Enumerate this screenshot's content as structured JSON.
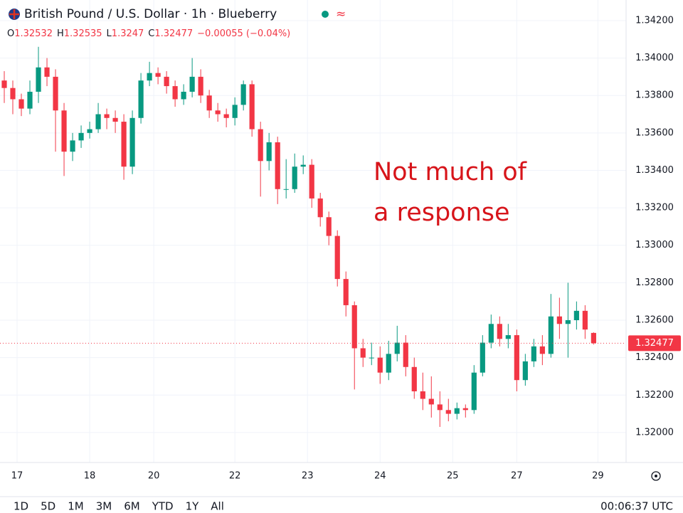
{
  "chart_data": {
    "type": "candlestick",
    "title": "British Pound / U.S. Dollar · 1h · Blueberry",
    "ohlc_header": {
      "open_label": "O",
      "open": 1.32532,
      "high_label": "H",
      "high": 1.32535,
      "low_label": "L",
      "low": 1.3247,
      "close_label": "C",
      "close": 1.32477,
      "change": "−0.00055 (−0.04%)"
    },
    "annotation": [
      "Not much of",
      "a response"
    ],
    "last_price": 1.32477,
    "up_color": "#089981",
    "down_color": "#f23645",
    "ylim": [
      1.3184,
      1.3431
    ],
    "yticks": [
      {
        "value": 1.342,
        "label": "1.34200"
      },
      {
        "value": 1.34,
        "label": "1.34000"
      },
      {
        "value": 1.338,
        "label": "1.33800"
      },
      {
        "value": 1.336,
        "label": "1.33600"
      },
      {
        "value": 1.334,
        "label": "1.33400"
      },
      {
        "value": 1.332,
        "label": "1.33200"
      },
      {
        "value": 1.33,
        "label": "1.33000"
      },
      {
        "value": 1.328,
        "label": "1.32800"
      },
      {
        "value": 1.326,
        "label": "1.32600"
      },
      {
        "value": 1.324,
        "label": "1.32400"
      },
      {
        "value": 1.322,
        "label": "1.32200"
      },
      {
        "value": 1.32,
        "label": "1.32000"
      }
    ],
    "xlim": [
      -0.5,
      72.8
    ],
    "xticks": [
      {
        "value": 1.5,
        "label": "17"
      },
      {
        "value": 10,
        "label": "18"
      },
      {
        "value": 17.5,
        "label": "20"
      },
      {
        "value": 27,
        "label": "22"
      },
      {
        "value": 35.5,
        "label": "23"
      },
      {
        "value": 44,
        "label": "24"
      },
      {
        "value": 52.5,
        "label": "25"
      },
      {
        "value": 60,
        "label": "27"
      },
      {
        "value": 69.5,
        "label": "29"
      }
    ],
    "grid": true,
    "open": [
      1.3388,
      1.3384,
      1.3378,
      1.3373,
      1.3382,
      1.3395,
      1.339,
      1.3372,
      1.335,
      1.3356,
      1.336,
      1.3362,
      1.337,
      1.3368,
      1.3366,
      1.3342,
      1.3368,
      1.3388,
      1.3392,
      1.339,
      1.3385,
      1.3378,
      1.3382,
      1.339,
      1.338,
      1.3372,
      1.337,
      1.3368,
      1.3375,
      1.3386,
      1.3362,
      1.3345,
      1.3355,
      1.333,
      1.333,
      1.3342,
      1.3343,
      1.3325,
      1.3315,
      1.3305,
      1.3282,
      1.3268,
      1.3245,
      1.324,
      1.324,
      1.3232,
      1.3242,
      1.3248,
      1.3235,
      1.3222,
      1.3218,
      1.3215,
      1.3212,
      1.321,
      1.3213,
      1.3212,
      1.3232,
      1.3248,
      1.3258,
      1.325,
      1.3252,
      1.3228,
      1.3238,
      1.3246,
      1.3242,
      1.3262,
      1.3258,
      1.326,
      1.3265,
      1.32532
    ],
    "high": [
      1.3393,
      1.3388,
      1.3381,
      1.3388,
      1.3406,
      1.34,
      1.3394,
      1.3376,
      1.336,
      1.3364,
      1.3366,
      1.3376,
      1.3373,
      1.3372,
      1.337,
      1.3372,
      1.3392,
      1.3398,
      1.3395,
      1.3393,
      1.3388,
      1.3386,
      1.34,
      1.3394,
      1.3383,
      1.3376,
      1.3373,
      1.3379,
      1.3388,
      1.3388,
      1.3366,
      1.336,
      1.3358,
      1.3346,
      1.3349,
      1.3348,
      1.3346,
      1.3328,
      1.3318,
      1.3308,
      1.3286,
      1.327,
      1.325,
      1.3248,
      1.3246,
      1.3249,
      1.3257,
      1.3252,
      1.324,
      1.3232,
      1.323,
      1.3222,
      1.3218,
      1.3216,
      1.3215,
      1.3236,
      1.3252,
      1.3263,
      1.3262,
      1.3258,
      1.3255,
      1.3242,
      1.325,
      1.3252,
      1.3274,
      1.3272,
      1.328,
      1.327,
      1.3268,
      1.32535
    ],
    "low": [
      1.3376,
      1.337,
      1.3369,
      1.337,
      1.3376,
      1.3385,
      1.335,
      1.3337,
      1.3345,
      1.3352,
      1.3357,
      1.336,
      1.3362,
      1.336,
      1.3335,
      1.3338,
      1.3365,
      1.3385,
      1.3386,
      1.3381,
      1.3374,
      1.3375,
      1.3379,
      1.3376,
      1.3368,
      1.3366,
      1.3363,
      1.3364,
      1.3372,
      1.3358,
      1.3326,
      1.334,
      1.3322,
      1.3325,
      1.3328,
      1.3338,
      1.332,
      1.331,
      1.33,
      1.3278,
      1.3262,
      1.3223,
      1.3235,
      1.3236,
      1.3226,
      1.3228,
      1.3238,
      1.323,
      1.3218,
      1.3212,
      1.3208,
      1.3203,
      1.3206,
      1.3207,
      1.3208,
      1.321,
      1.323,
      1.3245,
      1.3246,
      1.3245,
      1.3222,
      1.3225,
      1.3235,
      1.3236,
      1.324,
      1.325,
      1.324,
      1.3255,
      1.325,
      1.3247
    ],
    "close": [
      1.3384,
      1.3378,
      1.3373,
      1.3382,
      1.3395,
      1.339,
      1.3372,
      1.335,
      1.3356,
      1.336,
      1.3362,
      1.337,
      1.3368,
      1.3366,
      1.3342,
      1.3368,
      1.3388,
      1.3392,
      1.339,
      1.3385,
      1.3378,
      1.3382,
      1.339,
      1.338,
      1.3372,
      1.337,
      1.3368,
      1.3375,
      1.3386,
      1.3362,
      1.3345,
      1.3355,
      1.333,
      1.333,
      1.3342,
      1.3343,
      1.3325,
      1.3315,
      1.3305,
      1.3282,
      1.3268,
      1.3245,
      1.324,
      1.324,
      1.3232,
      1.3242,
      1.3248,
      1.3235,
      1.3222,
      1.3218,
      1.3215,
      1.3212,
      1.321,
      1.3213,
      1.3212,
      1.3232,
      1.3248,
      1.3258,
      1.325,
      1.3252,
      1.3228,
      1.3238,
      1.3246,
      1.3242,
      1.3262,
      1.3258,
      1.326,
      1.3265,
      1.3255,
      1.32477
    ]
  },
  "toolbar": {
    "ranges": [
      "1D",
      "5D",
      "1M",
      "3M",
      "6M",
      "YTD",
      "1Y",
      "All"
    ],
    "clock": "00:06:37 UTC"
  }
}
